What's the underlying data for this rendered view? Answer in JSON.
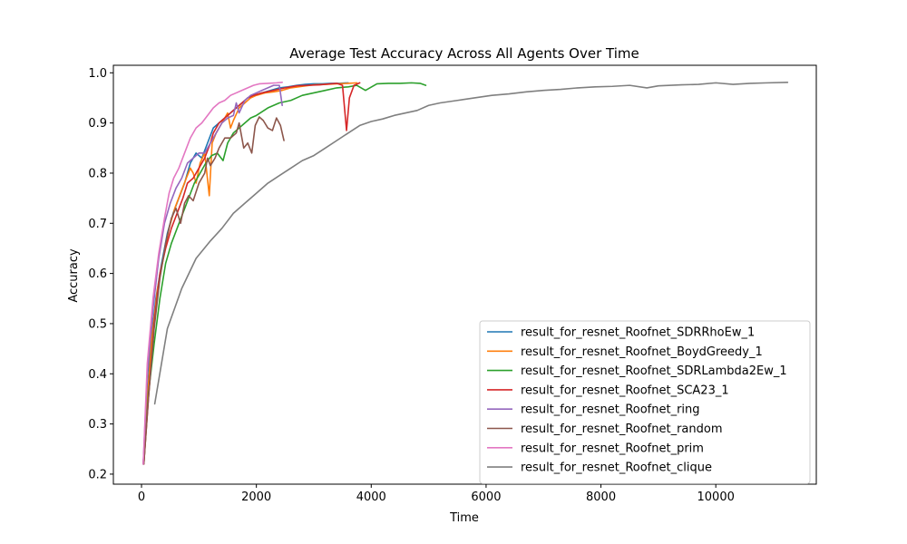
{
  "chart_data": {
    "type": "line",
    "title": "Average Test Accuracy Across All Agents Over Time",
    "xlabel": "Time",
    "ylabel": "Accuracy",
    "xlim": [
      -490,
      11750
    ],
    "ylim": [
      0.18,
      1.015
    ],
    "xticks": [
      0,
      2000,
      4000,
      6000,
      8000,
      10000
    ],
    "yticks": [
      0.2,
      0.3,
      0.4,
      0.5,
      0.6,
      0.7,
      0.8,
      0.9,
      1.0
    ],
    "legend_position": "lower right",
    "grid": false,
    "series": [
      {
        "name": "result_for_resnet_Roofnet_SDRRhoEw_1",
        "color": "#1f77b4",
        "points": [
          [
            30,
            0.22
          ],
          [
            80,
            0.31
          ],
          [
            150,
            0.45
          ],
          [
            250,
            0.55
          ],
          [
            350,
            0.62
          ],
          [
            450,
            0.68
          ],
          [
            550,
            0.72
          ],
          [
            650,
            0.75
          ],
          [
            750,
            0.78
          ],
          [
            850,
            0.82
          ],
          [
            950,
            0.84
          ],
          [
            1050,
            0.83
          ],
          [
            1150,
            0.86
          ],
          [
            1250,
            0.89
          ],
          [
            1350,
            0.9
          ],
          [
            1450,
            0.91
          ],
          [
            1550,
            0.92
          ],
          [
            1650,
            0.93
          ],
          [
            1750,
            0.94
          ],
          [
            1850,
            0.95
          ],
          [
            1950,
            0.955
          ],
          [
            2100,
            0.96
          ],
          [
            2250,
            0.965
          ],
          [
            2400,
            0.97
          ],
          [
            2550,
            0.972
          ],
          [
            2700,
            0.975
          ],
          [
            2850,
            0.977
          ],
          [
            3000,
            0.978
          ],
          [
            3150,
            0.978
          ],
          [
            3300,
            0.979
          ],
          [
            3450,
            0.979
          ],
          [
            3600,
            0.98
          ]
        ]
      },
      {
        "name": "result_for_resnet_Roofnet_BoydGreedy_1",
        "color": "#ff7f0e",
        "points": [
          [
            30,
            0.22
          ],
          [
            90,
            0.33
          ],
          [
            180,
            0.47
          ],
          [
            280,
            0.57
          ],
          [
            380,
            0.63
          ],
          [
            480,
            0.69
          ],
          [
            580,
            0.73
          ],
          [
            680,
            0.76
          ],
          [
            780,
            0.79
          ],
          [
            850,
            0.81
          ],
          [
            900,
            0.8
          ],
          [
            950,
            0.78
          ],
          [
            1020,
            0.82
          ],
          [
            1100,
            0.84
          ],
          [
            1180,
            0.755
          ],
          [
            1230,
            0.86
          ],
          [
            1300,
            0.88
          ],
          [
            1400,
            0.9
          ],
          [
            1500,
            0.92
          ],
          [
            1550,
            0.89
          ],
          [
            1600,
            0.905
          ],
          [
            1700,
            0.93
          ],
          [
            1800,
            0.94
          ],
          [
            1900,
            0.95
          ],
          [
            2000,
            0.955
          ],
          [
            2150,
            0.96
          ],
          [
            2300,
            0.962
          ],
          [
            2450,
            0.965
          ],
          [
            2600,
            0.97
          ],
          [
            2800,
            0.973
          ],
          [
            3000,
            0.976
          ],
          [
            3200,
            0.977
          ],
          [
            3400,
            0.978
          ],
          [
            3600,
            0.979
          ],
          [
            3750,
            0.98
          ]
        ]
      },
      {
        "name": "result_for_resnet_Roofnet_SDRLambda2Ew_1",
        "color": "#2ca02c",
        "points": [
          [
            40,
            0.22
          ],
          [
            120,
            0.36
          ],
          [
            220,
            0.46
          ],
          [
            320,
            0.55
          ],
          [
            420,
            0.62
          ],
          [
            520,
            0.66
          ],
          [
            620,
            0.69
          ],
          [
            720,
            0.72
          ],
          [
            820,
            0.75
          ],
          [
            920,
            0.78
          ],
          [
            1020,
            0.8
          ],
          [
            1120,
            0.82
          ],
          [
            1220,
            0.835
          ],
          [
            1320,
            0.84
          ],
          [
            1420,
            0.825
          ],
          [
            1500,
            0.86
          ],
          [
            1600,
            0.88
          ],
          [
            1700,
            0.89
          ],
          [
            1800,
            0.9
          ],
          [
            1900,
            0.91
          ],
          [
            2000,
            0.915
          ],
          [
            2200,
            0.93
          ],
          [
            2400,
            0.94
          ],
          [
            2600,
            0.945
          ],
          [
            2800,
            0.955
          ],
          [
            3000,
            0.96
          ],
          [
            3200,
            0.965
          ],
          [
            3400,
            0.97
          ],
          [
            3600,
            0.972
          ],
          [
            3750,
            0.975
          ],
          [
            3900,
            0.965
          ],
          [
            4100,
            0.978
          ],
          [
            4300,
            0.979
          ],
          [
            4500,
            0.979
          ],
          [
            4700,
            0.98
          ],
          [
            4850,
            0.979
          ],
          [
            4950,
            0.975
          ]
        ]
      },
      {
        "name": "result_for_resnet_Roofnet_SCA23_1",
        "color": "#d62728",
        "points": [
          [
            40,
            0.22
          ],
          [
            120,
            0.35
          ],
          [
            220,
            0.5
          ],
          [
            320,
            0.6
          ],
          [
            420,
            0.65
          ],
          [
            520,
            0.69
          ],
          [
            620,
            0.72
          ],
          [
            720,
            0.75
          ],
          [
            800,
            0.78
          ],
          [
            900,
            0.79
          ],
          [
            1000,
            0.81
          ],
          [
            1100,
            0.83
          ],
          [
            1200,
            0.86
          ],
          [
            1250,
            0.88
          ],
          [
            1350,
            0.9
          ],
          [
            1450,
            0.91
          ],
          [
            1550,
            0.92
          ],
          [
            1650,
            0.93
          ],
          [
            1750,
            0.94
          ],
          [
            1850,
            0.95
          ],
          [
            1950,
            0.955
          ],
          [
            2100,
            0.96
          ],
          [
            2300,
            0.965
          ],
          [
            2500,
            0.97
          ],
          [
            2700,
            0.974
          ],
          [
            2900,
            0.975
          ],
          [
            3100,
            0.976
          ],
          [
            3300,
            0.978
          ],
          [
            3400,
            0.979
          ],
          [
            3500,
            0.975
          ],
          [
            3570,
            0.885
          ],
          [
            3620,
            0.95
          ],
          [
            3700,
            0.975
          ],
          [
            3800,
            0.98
          ]
        ]
      },
      {
        "name": "result_for_resnet_Roofnet_ring",
        "color": "#9467bd",
        "points": [
          [
            30,
            0.22
          ],
          [
            100,
            0.4
          ],
          [
            200,
            0.53
          ],
          [
            300,
            0.63
          ],
          [
            400,
            0.7
          ],
          [
            500,
            0.74
          ],
          [
            600,
            0.77
          ],
          [
            700,
            0.79
          ],
          [
            800,
            0.82
          ],
          [
            900,
            0.83
          ],
          [
            1000,
            0.84
          ],
          [
            1100,
            0.84
          ],
          [
            1200,
            0.86
          ],
          [
            1300,
            0.88
          ],
          [
            1400,
            0.9
          ],
          [
            1500,
            0.91
          ],
          [
            1600,
            0.915
          ],
          [
            1650,
            0.94
          ],
          [
            1700,
            0.92
          ],
          [
            1800,
            0.945
          ],
          [
            1900,
            0.955
          ],
          [
            2000,
            0.96
          ],
          [
            2100,
            0.965
          ],
          [
            2200,
            0.97
          ],
          [
            2300,
            0.975
          ],
          [
            2400,
            0.975
          ],
          [
            2450,
            0.935
          ]
        ]
      },
      {
        "name": "result_for_resnet_Roofnet_random",
        "color": "#8c564b",
        "points": [
          [
            40,
            0.22
          ],
          [
            120,
            0.35
          ],
          [
            220,
            0.49
          ],
          [
            320,
            0.59
          ],
          [
            420,
            0.66
          ],
          [
            520,
            0.71
          ],
          [
            600,
            0.73
          ],
          [
            680,
            0.7
          ],
          [
            750,
            0.74
          ],
          [
            820,
            0.755
          ],
          [
            900,
            0.745
          ],
          [
            1000,
            0.78
          ],
          [
            1100,
            0.8
          ],
          [
            1150,
            0.83
          ],
          [
            1200,
            0.815
          ],
          [
            1280,
            0.83
          ],
          [
            1350,
            0.85
          ],
          [
            1450,
            0.87
          ],
          [
            1550,
            0.87
          ],
          [
            1650,
            0.88
          ],
          [
            1700,
            0.9
          ],
          [
            1780,
            0.85
          ],
          [
            1850,
            0.86
          ],
          [
            1920,
            0.84
          ],
          [
            1980,
            0.895
          ],
          [
            2050,
            0.912
          ],
          [
            2120,
            0.905
          ],
          [
            2200,
            0.89
          ],
          [
            2280,
            0.885
          ],
          [
            2350,
            0.91
          ],
          [
            2420,
            0.895
          ],
          [
            2480,
            0.865
          ]
        ]
      },
      {
        "name": "result_for_resnet_Roofnet_prim",
        "color": "#e377c2",
        "points": [
          [
            30,
            0.22
          ],
          [
            100,
            0.42
          ],
          [
            200,
            0.55
          ],
          [
            300,
            0.64
          ],
          [
            400,
            0.71
          ],
          [
            480,
            0.76
          ],
          [
            560,
            0.79
          ],
          [
            650,
            0.81
          ],
          [
            750,
            0.84
          ],
          [
            850,
            0.87
          ],
          [
            950,
            0.89
          ],
          [
            1050,
            0.9
          ],
          [
            1150,
            0.915
          ],
          [
            1250,
            0.93
          ],
          [
            1350,
            0.94
          ],
          [
            1450,
            0.945
          ],
          [
            1550,
            0.955
          ],
          [
            1650,
            0.96
          ],
          [
            1750,
            0.965
          ],
          [
            1850,
            0.97
          ],
          [
            1950,
            0.975
          ],
          [
            2050,
            0.978
          ],
          [
            2200,
            0.979
          ],
          [
            2350,
            0.98
          ],
          [
            2450,
            0.981
          ]
        ]
      },
      {
        "name": "result_for_resnet_Roofnet_clique",
        "color": "#7f7f7f",
        "points": [
          [
            230,
            0.34
          ],
          [
            450,
            0.49
          ],
          [
            700,
            0.57
          ],
          [
            950,
            0.63
          ],
          [
            1200,
            0.665
          ],
          [
            1400,
            0.69
          ],
          [
            1600,
            0.72
          ],
          [
            1800,
            0.74
          ],
          [
            2000,
            0.76
          ],
          [
            2200,
            0.78
          ],
          [
            2400,
            0.795
          ],
          [
            2600,
            0.81
          ],
          [
            2800,
            0.825
          ],
          [
            3000,
            0.835
          ],
          [
            3200,
            0.85
          ],
          [
            3400,
            0.865
          ],
          [
            3600,
            0.88
          ],
          [
            3800,
            0.895
          ],
          [
            4000,
            0.903
          ],
          [
            4200,
            0.908
          ],
          [
            4400,
            0.915
          ],
          [
            4600,
            0.92
          ],
          [
            4800,
            0.925
          ],
          [
            5000,
            0.935
          ],
          [
            5200,
            0.94
          ],
          [
            5500,
            0.945
          ],
          [
            5800,
            0.95
          ],
          [
            6100,
            0.955
          ],
          [
            6400,
            0.958
          ],
          [
            6700,
            0.962
          ],
          [
            7000,
            0.965
          ],
          [
            7300,
            0.967
          ],
          [
            7600,
            0.97
          ],
          [
            7900,
            0.972
          ],
          [
            8200,
            0.973
          ],
          [
            8500,
            0.975
          ],
          [
            8800,
            0.97
          ],
          [
            9000,
            0.974
          ],
          [
            9400,
            0.976
          ],
          [
            9700,
            0.977
          ],
          [
            10000,
            0.98
          ],
          [
            10300,
            0.977
          ],
          [
            10600,
            0.979
          ],
          [
            10900,
            0.98
          ],
          [
            11250,
            0.981
          ]
        ]
      }
    ]
  }
}
